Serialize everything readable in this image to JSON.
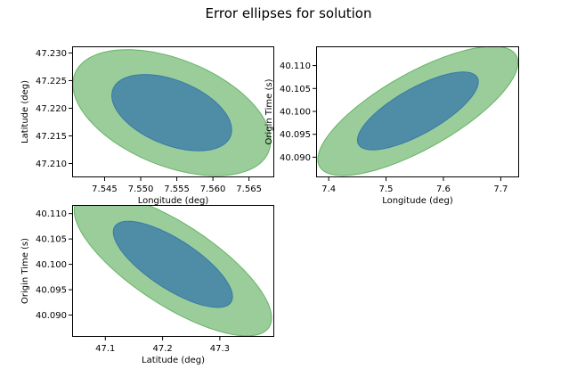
{
  "figure": {
    "title": "Error ellipses for solution"
  },
  "colors": {
    "outer_ellipse": "#66b366",
    "inner_ellipse": "#3a7aa8",
    "axes": "#000000",
    "background": "#ffffff"
  },
  "chart_data": [
    {
      "type": "scatter",
      "panel": "top-left",
      "xlabel": "Longitude (deg)",
      "ylabel": "Latitude (deg)",
      "xlim": [
        7.5405,
        7.5685
      ],
      "ylim": [
        47.2075,
        47.2312
      ],
      "xticks": [
        7.545,
        7.55,
        7.555,
        7.56,
        7.565
      ],
      "xtick_labels": [
        "7.545",
        "7.550",
        "7.555",
        "7.560",
        "7.565"
      ],
      "yticks": [
        47.21,
        47.215,
        47.22,
        47.225,
        47.23
      ],
      "ytick_labels": [
        "47.210",
        "47.215",
        "47.220",
        "47.225",
        "47.230"
      ],
      "ellipses": [
        {
          "level": "outer",
          "center": [
            7.5543,
            47.2192
          ],
          "half_width": 0.0137,
          "half_height": 0.0114,
          "corr": -0.45
        },
        {
          "level": "inner",
          "center": [
            7.5543,
            47.2192
          ],
          "half_width": 0.0083,
          "half_height": 0.0069,
          "corr": -0.45
        }
      ],
      "grid": false
    },
    {
      "type": "scatter",
      "panel": "top-right",
      "xlabel": "Longitude (deg)",
      "ylabel": "Origin Time (s)",
      "xlim": [
        7.378,
        7.732
      ],
      "ylim": [
        40.0856,
        40.1142
      ],
      "xticks": [
        7.4,
        7.5,
        7.6,
        7.7
      ],
      "xtick_labels": [
        "7.4",
        "7.5",
        "7.6",
        "7.7"
      ],
      "yticks": [
        40.09,
        40.095,
        40.1,
        40.105,
        40.11
      ],
      "ytick_labels": [
        "40.090",
        "40.095",
        "40.100",
        "40.105",
        "40.110"
      ],
      "ellipses": [
        {
          "level": "outer",
          "center": [
            7.5555,
            40.1001
          ],
          "half_width": 0.1745,
          "half_height": 0.0141,
          "corr": 0.75
        },
        {
          "level": "inner",
          "center": [
            7.5555,
            40.1001
          ],
          "half_width": 0.1054,
          "half_height": 0.0085,
          "corr": 0.75
        }
      ],
      "grid": false
    },
    {
      "type": "scatter",
      "panel": "bottom-left",
      "xlabel": "Latitude (deg)",
      "ylabel": "Origin Time (s)",
      "xlim": [
        47.042,
        47.395
      ],
      "ylim": [
        40.0857,
        40.1117
      ],
      "xticks": [
        47.1,
        47.2,
        47.3
      ],
      "xtick_labels": [
        "47.1",
        "47.2",
        "47.3"
      ],
      "yticks": [
        40.09,
        40.095,
        40.1,
        40.105,
        40.11
      ],
      "ytick_labels": [
        "40.090",
        "40.095",
        "40.100",
        "40.105",
        "40.110"
      ],
      "ellipses": [
        {
          "level": "outer",
          "center": [
            47.218,
            40.1
          ],
          "half_width": 0.1724,
          "half_height": 0.0141,
          "corr": -0.75
        },
        {
          "level": "inner",
          "center": [
            47.218,
            40.1
          ],
          "half_width": 0.1041,
          "half_height": 0.0085,
          "corr": -0.75
        }
      ],
      "grid": false
    }
  ]
}
